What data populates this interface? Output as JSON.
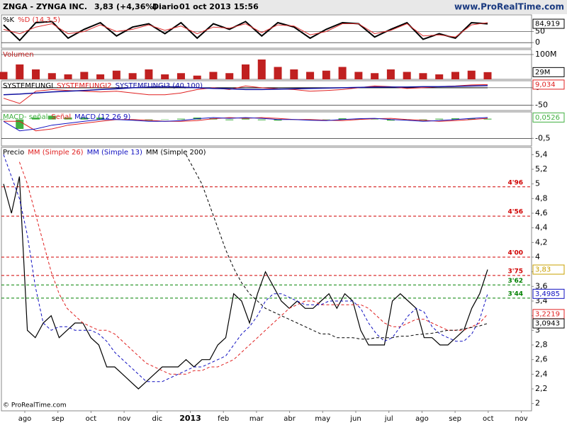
{
  "header": {
    "symbol": "ZNGA - ZYNGA INC.",
    "change": "3,83 (+4,36%)",
    "period": "Diario",
    "date": "01 oct 2013 15:56",
    "site": "www.ProRealTime.com",
    "copyright": "© ProRealTime.com"
  },
  "chart_data": [
    {
      "type": "line",
      "ylim": [
        -25,
        125
      ],
      "yticks": [
        0,
        50
      ],
      "series": [
        {
          "name": "%K",
          "color": "#000000",
          "width": 2,
          "values": [
            80,
            10,
            90,
            95,
            20,
            60,
            90,
            30,
            70,
            85,
            40,
            90,
            20,
            85,
            60,
            95,
            30,
            90,
            70,
            20,
            60,
            90,
            85,
            25,
            60,
            90,
            15,
            40,
            20,
            90,
            84.919
          ]
        },
        {
          "name": "%D (14,3,5)",
          "color": "#e03030",
          "width": 1,
          "values": [
            60,
            40,
            70,
            85,
            40,
            50,
            80,
            50,
            60,
            80,
            55,
            75,
            40,
            70,
            65,
            85,
            45,
            80,
            75,
            35,
            50,
            85,
            85,
            40,
            55,
            85,
            30,
            35,
            25,
            80,
            90
          ]
        }
      ],
      "value_boxes": [
        {
          "value": 84.919,
          "label": "84,919",
          "color": "#000000"
        }
      ]
    },
    {
      "type": "bar",
      "ylim": [
        0,
        120
      ],
      "yticks": [
        {
          "value": 100,
          "label": "100M"
        }
      ],
      "series": [
        {
          "name": "Volumen",
          "color": "#c02020",
          "values": [
            30,
            60,
            40,
            25,
            20,
            30,
            20,
            35,
            25,
            40,
            20,
            25,
            15,
            30,
            25,
            60,
            80,
            50,
            40,
            30,
            35,
            50,
            30,
            25,
            40,
            30,
            25,
            20,
            30,
            35,
            29
          ]
        }
      ],
      "value_boxes": [
        {
          "value": 29,
          "label": "29M",
          "color": "#000000"
        }
      ]
    },
    {
      "type": "line",
      "ylim": [
        -65,
        20
      ],
      "yticks": [
        0,
        -50
      ],
      "series": [
        {
          "name": "SYSTEMFUNGI",
          "color": "#000000",
          "width": 1,
          "values": [
            0,
            0,
            0,
            0,
            0,
            0,
            0,
            0,
            0,
            0,
            0,
            0,
            0,
            0,
            0,
            0,
            0,
            0,
            0,
            0,
            0,
            0,
            0,
            0,
            0,
            0,
            0,
            0,
            0,
            0,
            0
          ]
        },
        {
          "name": "SYSTEMFUNGI2",
          "color": "#e02020",
          "width": 1,
          "values": [
            -30,
            -45,
            -10,
            -5,
            -8,
            -10,
            -12,
            -10,
            -15,
            -20,
            -20,
            -15,
            -5,
            0,
            -5,
            5,
            0,
            -3,
            -5,
            -10,
            -8,
            -5,
            0,
            5,
            3,
            -2,
            0,
            3,
            5,
            8,
            9.034
          ]
        },
        {
          "name": "SYSTEMFUNGI3 (40,100)",
          "color": "#1010a0",
          "width": 1.5,
          "values": [
            -20,
            -18,
            -15,
            -12,
            -10,
            -8,
            -5,
            -3,
            0,
            2,
            3,
            2,
            0,
            -2,
            -3,
            -5,
            -5,
            -4,
            -3,
            -2,
            -1,
            0,
            1,
            2,
            2,
            2,
            3,
            3,
            4,
            5,
            6
          ]
        }
      ],
      "value_boxes": [
        {
          "value": 9.034,
          "label": "9,034",
          "color": "#e02020"
        }
      ]
    },
    {
      "type": "line",
      "ylim": [
        -0.7,
        0.2
      ],
      "yticks": [
        {
          "value": -0.5,
          "label": "-0,5"
        }
      ],
      "series": [
        {
          "name": "MACD- señal",
          "color": "#40b040",
          "type": "bar",
          "values": [
            0,
            -0.25,
            0.05,
            0.1,
            0.05,
            0.05,
            0.05,
            0,
            -0.02,
            -0.03,
            0,
            0.02,
            0.05,
            0.03,
            -0.02,
            0.02,
            -0.02,
            -0.03,
            0,
            -0.02,
            -0.01,
            0.03,
            0.02,
            0.01,
            -0.03,
            -0.02,
            -0.03,
            0.02,
            0.03,
            0.03,
            0.02
          ]
        },
        {
          "name": "Señal",
          "color": "#e02020",
          "width": 1,
          "values": [
            -0.05,
            -0.05,
            -0.3,
            -0.25,
            -0.15,
            -0.1,
            -0.05,
            0,
            0,
            -0.02,
            -0.05,
            -0.05,
            -0.03,
            0.02,
            0.05,
            0.03,
            0.05,
            0.03,
            0,
            0,
            -0.02,
            -0.03,
            0,
            0.02,
            0.03,
            0,
            -0.02,
            -0.05,
            -0.03,
            0,
            0.03
          ]
        },
        {
          "name": "MACD (12 26 9)",
          "color": "#1010c0",
          "width": 1,
          "values": [
            -0.05,
            -0.3,
            -0.25,
            -0.15,
            -0.1,
            -0.05,
            0,
            0,
            -0.02,
            -0.05,
            -0.05,
            -0.03,
            0.02,
            0.05,
            0.03,
            0.05,
            0.03,
            0,
            0,
            -0.02,
            -0.03,
            0,
            0.02,
            0.03,
            0,
            -0.02,
            -0.05,
            -0.03,
            0,
            0.03,
            0.0526
          ]
        }
      ],
      "value_boxes": [
        {
          "value": 0.0526,
          "label": "0,0526",
          "color": "#40b040"
        }
      ]
    },
    {
      "type": "line",
      "ylim": [
        1.9,
        5.5
      ],
      "yticks": [
        {
          "value": 5.4,
          "label": "5,4"
        },
        {
          "value": 5.2,
          "label": "5,2"
        },
        5,
        {
          "value": 4.8,
          "label": "4,8"
        },
        {
          "value": 4.6,
          "label": "4,6"
        },
        {
          "value": 4.4,
          "label": "4,4"
        },
        {
          "value": 4.2,
          "label": "4,2"
        },
        4,
        {
          "value": 3.8,
          "label": "3,8"
        },
        {
          "value": 3.6,
          "label": "3,6"
        },
        {
          "value": 3.4,
          "label": "3,4"
        },
        {
          "value": 3.2,
          "label": "3,2"
        },
        3,
        {
          "value": 2.8,
          "label": "2,8"
        },
        {
          "value": 2.6,
          "label": "2,6"
        },
        {
          "value": 2.4,
          "label": "2,4"
        },
        {
          "value": 2.2,
          "label": "2,2"
        },
        2
      ],
      "month_labels": [
        "ago",
        "sep",
        "oct",
        "nov",
        "dic",
        "2013",
        "feb",
        "mar",
        "abr",
        "may",
        "jun",
        "jul",
        "ago",
        "sep",
        "oct",
        "nov"
      ],
      "series": [
        {
          "name": "Precio",
          "color": "#000000",
          "width": 1.2,
          "values": [
            5.0,
            4.6,
            5.1,
            3.0,
            2.9,
            3.1,
            3.2,
            2.9,
            3.0,
            3.1,
            3.1,
            2.9,
            2.8,
            2.5,
            2.5,
            2.4,
            2.3,
            2.2,
            2.3,
            2.4,
            2.5,
            2.5,
            2.5,
            2.6,
            2.5,
            2.6,
            2.6,
            2.8,
            2.9,
            3.5,
            3.4,
            3.1,
            3.5,
            3.8,
            3.6,
            3.4,
            3.3,
            3.4,
            3.3,
            3.3,
            3.4,
            3.5,
            3.3,
            3.5,
            3.4,
            3.0,
            2.8,
            2.8,
            2.8,
            3.4,
            3.5,
            3.4,
            3.3,
            2.9,
            2.9,
            2.8,
            2.8,
            2.9,
            3.0,
            3.3,
            3.5,
            3.83
          ]
        },
        {
          "name": "MM (Simple 26)",
          "color": "#e02020",
          "width": 1,
          "dash": true,
          "values": [
            null,
            null,
            5.3,
            5.0,
            4.6,
            4.2,
            3.8,
            3.5,
            3.3,
            3.2,
            3.1,
            3.05,
            3.0,
            3.0,
            2.95,
            2.85,
            2.75,
            2.65,
            2.55,
            2.5,
            2.45,
            2.4,
            2.4,
            2.4,
            2.45,
            2.45,
            2.5,
            2.5,
            2.55,
            2.6,
            2.7,
            2.8,
            2.9,
            3.0,
            3.1,
            3.2,
            3.3,
            3.35,
            3.4,
            3.4,
            3.35,
            3.35,
            3.35,
            3.35,
            3.35,
            3.35,
            3.3,
            3.2,
            3.1,
            3.05,
            3.05,
            3.1,
            3.15,
            3.15,
            3.1,
            3.05,
            3.0,
            3.0,
            3.0,
            3.05,
            3.1,
            3.2219
          ]
        },
        {
          "name": "MM (Simple 13)",
          "color": "#1010c0",
          "width": 1,
          "dash": true,
          "values": [
            5.4,
            5.1,
            4.8,
            4.3,
            3.6,
            3.1,
            3.0,
            3.05,
            3.05,
            3.0,
            3.0,
            3.0,
            2.95,
            2.85,
            2.7,
            2.6,
            2.5,
            2.4,
            2.3,
            2.3,
            2.3,
            2.35,
            2.4,
            2.45,
            2.5,
            2.5,
            2.55,
            2.6,
            2.65,
            2.8,
            2.95,
            3.05,
            3.2,
            3.4,
            3.5,
            3.5,
            3.45,
            3.4,
            3.35,
            3.35,
            3.35,
            3.4,
            3.4,
            3.4,
            3.4,
            3.3,
            3.1,
            2.95,
            2.85,
            2.9,
            3.05,
            3.2,
            3.3,
            3.25,
            3.05,
            2.95,
            2.9,
            2.85,
            2.85,
            2.95,
            3.15,
            3.4985
          ]
        },
        {
          "name": "MM (Simple 200)",
          "color": "#000000",
          "width": 1,
          "dash": true,
          "values": [
            null,
            null,
            null,
            null,
            null,
            null,
            null,
            null,
            null,
            null,
            null,
            null,
            null,
            null,
            null,
            null,
            null,
            null,
            null,
            null,
            null,
            null,
            null,
            5.4,
            5.2,
            5.0,
            4.7,
            4.4,
            4.1,
            3.85,
            3.65,
            3.5,
            3.4,
            3.3,
            3.25,
            3.2,
            3.15,
            3.1,
            3.05,
            3.0,
            2.95,
            2.95,
            2.9,
            2.9,
            2.9,
            2.88,
            2.88,
            2.9,
            2.9,
            2.9,
            2.92,
            2.92,
            2.94,
            2.95,
            2.96,
            2.98,
            3.0,
            3.0,
            3.02,
            3.04,
            3.06,
            3.0943
          ]
        }
      ],
      "levels": [
        {
          "value": 4.96,
          "label": "4'96",
          "color": "#d00000"
        },
        {
          "value": 4.56,
          "label": "4'56",
          "color": "#d00000"
        },
        {
          "value": 4.0,
          "label": "4'00",
          "color": "#d00000"
        },
        {
          "value": 3.75,
          "label": "3'75",
          "color": "#d00000"
        },
        {
          "value": 3.62,
          "label": "3'62",
          "color": "#008000"
        },
        {
          "value": 3.44,
          "label": "3'44",
          "color": "#008000"
        }
      ],
      "value_boxes": [
        {
          "value": 3.83,
          "label": "3,83",
          "color": "#c8a000"
        },
        {
          "value": 3.4985,
          "label": "3,4985",
          "color": "#1010c0"
        },
        {
          "value": 3.2219,
          "label": "3,2219",
          "color": "#e02020"
        },
        {
          "value": 3.0943,
          "label": "3,0943",
          "color": "#000000"
        }
      ]
    }
  ]
}
